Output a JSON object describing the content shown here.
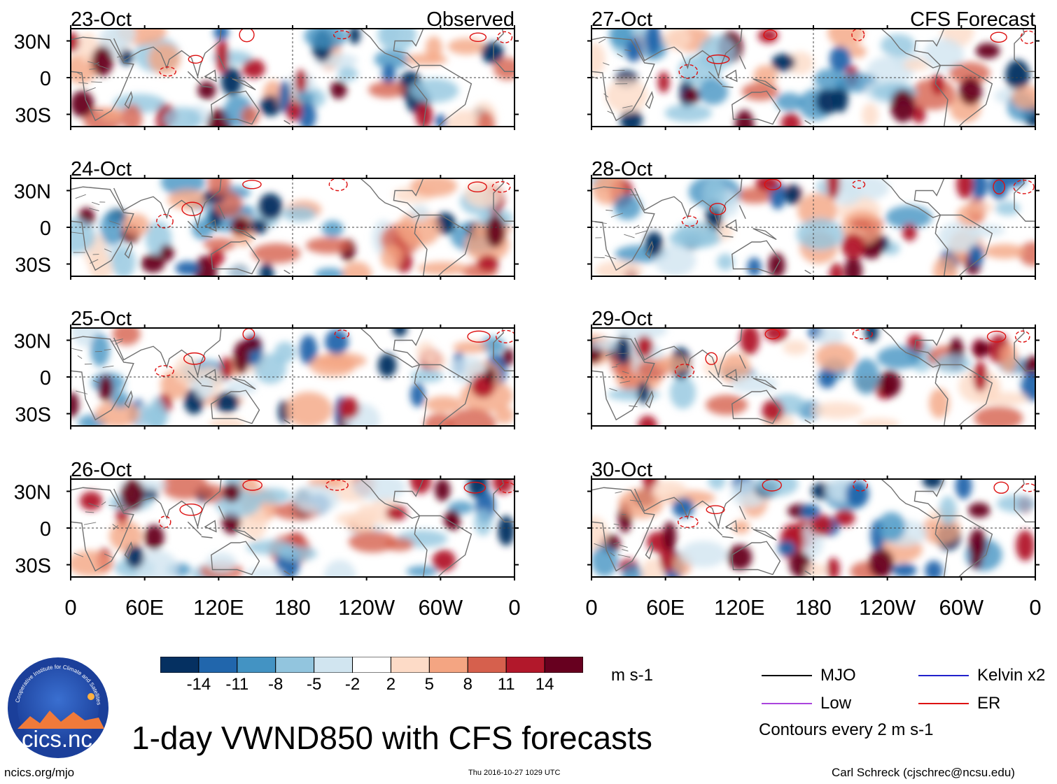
{
  "chart_data": {
    "type": "heatmap",
    "title": "1-day VWND850 with CFS forecasts",
    "variable": "VWND850",
    "units": "m s-1",
    "columns": [
      {
        "heading": "Observed",
        "dates": [
          "23-Oct",
          "24-Oct",
          "25-Oct",
          "26-Oct"
        ]
      },
      {
        "heading": "CFS Forecast",
        "dates": [
          "27-Oct",
          "28-Oct",
          "29-Oct",
          "30-Oct"
        ]
      }
    ],
    "x_ticks": [
      "0",
      "60E",
      "120E",
      "180",
      "120W",
      "60W",
      "0"
    ],
    "y_ticks": [
      "30N",
      "0",
      "30S"
    ],
    "lon_range": [
      0,
      360
    ],
    "lat_range": [
      -40,
      40
    ],
    "colorbar_labels": [
      "-14",
      "-11",
      "-8",
      "-5",
      "-2",
      "2",
      "5",
      "8",
      "11",
      "14"
    ],
    "colorbar_colors": [
      "#053061",
      "#2166ac",
      "#4393c3",
      "#92c5de",
      "#d1e5f0",
      "#ffffff",
      "#fddbc7",
      "#f4a582",
      "#d6604d",
      "#b2182b",
      "#67001f"
    ],
    "contour_legend": [
      {
        "label": "MJO",
        "color": "#000000"
      },
      {
        "label": "Kelvin x2",
        "color": "#2222cc"
      },
      {
        "label": "Low",
        "color": "#aa44dd"
      },
      {
        "label": "ER",
        "color": "#dd1111"
      }
    ],
    "contour_note": "Contours every 2 m s-1"
  },
  "footer": {
    "left": "ncics.org/mjo",
    "center": "Thu 2016-10-27 1029 UTC",
    "right": "Carl Schreck (cjschrec@ncsu.edu)"
  },
  "logo": {
    "text": "cics.nc",
    "ring": "Cooperative Institute for Climate and Satellites"
  }
}
